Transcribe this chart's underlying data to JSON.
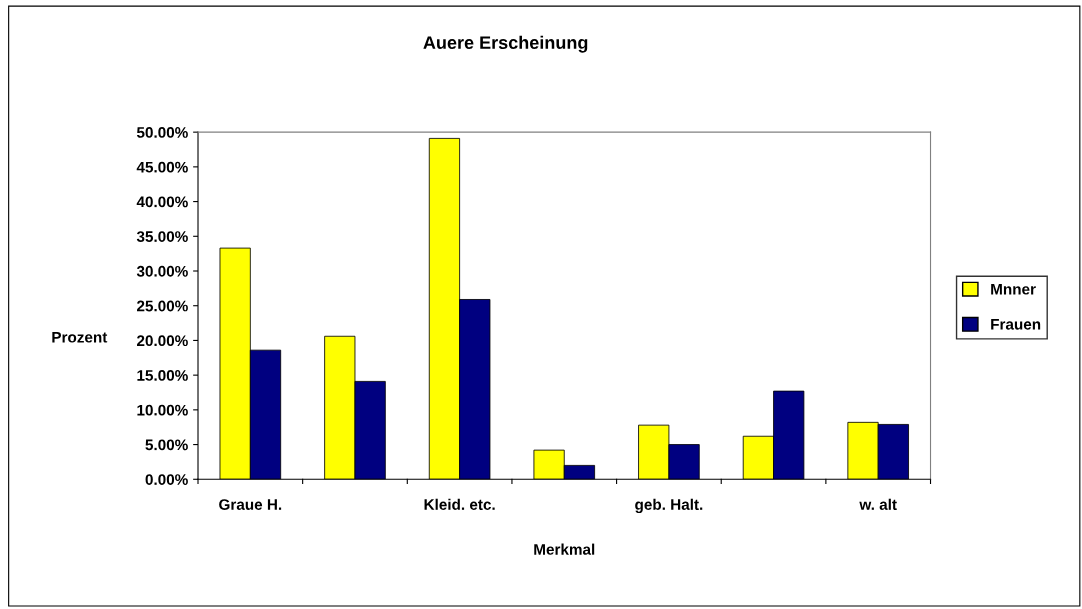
{
  "chart_data": {
    "type": "bar",
    "title": "Auere Erscheinung",
    "xlabel": "Merkmal",
    "ylabel": "Prozent",
    "categories": [
      "Graue H.",
      null,
      "Kleid. etc.",
      null,
      "geb. Halt.",
      null,
      "w. alt"
    ],
    "series": [
      {
        "name": "Mnner",
        "color": "#ffff00",
        "values": [
          33.3,
          20.6,
          49.1,
          4.2,
          7.8,
          6.2,
          8.2
        ]
      },
      {
        "name": "Frauen",
        "color": "#000080",
        "values": [
          18.6,
          14.1,
          25.9,
          2.0,
          5.0,
          12.7,
          7.9
        ]
      }
    ],
    "ylim": [
      0,
      50
    ],
    "yticks": [
      {
        "value": 0,
        "label": "0.00%"
      },
      {
        "value": 5,
        "label": "5.00%"
      },
      {
        "value": 10,
        "label": "10.00%"
      },
      {
        "value": 15,
        "label": "15.00%"
      },
      {
        "value": 20,
        "label": "20.00%"
      },
      {
        "value": 25,
        "label": "25.00%"
      },
      {
        "value": 30,
        "label": "30.00%"
      },
      {
        "value": 35,
        "label": "35.00%"
      },
      {
        "value": 40,
        "label": "40.00%"
      },
      {
        "value": 45,
        "label": "45.00%"
      },
      {
        "value": 50,
        "label": "50.00%"
      }
    ],
    "grid": false,
    "legend": "right"
  }
}
